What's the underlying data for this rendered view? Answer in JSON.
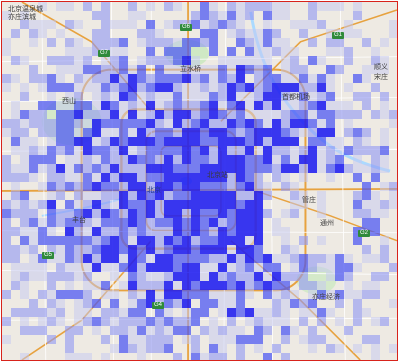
{
  "map": {
    "labels": {
      "top_left_1": "北京温泉城",
      "top_left_2": "亦庄滨城",
      "north_center": "立水桥",
      "northeast_airport": "首都机场",
      "west_center": "西山",
      "center_1": "北京",
      "east_center": "北京站",
      "east_1": "管庄",
      "east_2": "通州",
      "southwest": "丰台",
      "southeast": "亦庄经济",
      "right_edge_1": "顺义",
      "right_edge_2": "宋庄"
    },
    "road_shields": [
      "G6",
      "G7",
      "G1",
      "G2",
      "G4",
      "G5"
    ],
    "colors": {
      "heat_strong": "#1f1df0",
      "heat_mid": "#4a55f4",
      "heat_light": "#8f96f4",
      "heat_faint": "#c4c7f2",
      "frame": "#d8231b",
      "road_ring": "#f2b24a",
      "road_major": "#e7a23f",
      "road_minor": "#ffffff",
      "water": "#aadaff",
      "park": "#cfe8c4",
      "land": "#eeeae3"
    }
  }
}
